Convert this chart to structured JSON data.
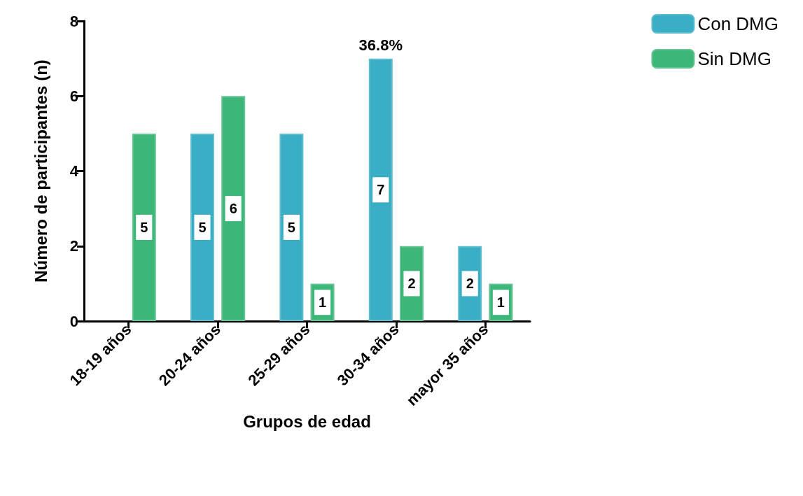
{
  "chart_data": {
    "type": "bar",
    "xlabel": "Grupos de edad",
    "ylabel": "Número de participantes (n)",
    "categories": [
      "18-19 años",
      "20-24 años",
      "25-29 años",
      "30-34 años",
      "mayor 35 años"
    ],
    "series": [
      {
        "name": "Con DMG",
        "color": "#3aaec4",
        "values": [
          null,
          5,
          5,
          7,
          2
        ],
        "value_labels": [
          null,
          "5",
          "5",
          "7",
          "2"
        ]
      },
      {
        "name": "Sin DMG",
        "color": "#3db67a",
        "values": [
          5,
          6,
          1,
          2,
          1
        ],
        "value_labels": [
          "5",
          "6",
          "1",
          "2",
          "1"
        ]
      }
    ],
    "ylim": [
      0,
      8
    ],
    "yticks": [
      0,
      2,
      4,
      6,
      8
    ],
    "grid": false,
    "legend": "top right",
    "annotations": [
      "36.8%"
    ]
  }
}
